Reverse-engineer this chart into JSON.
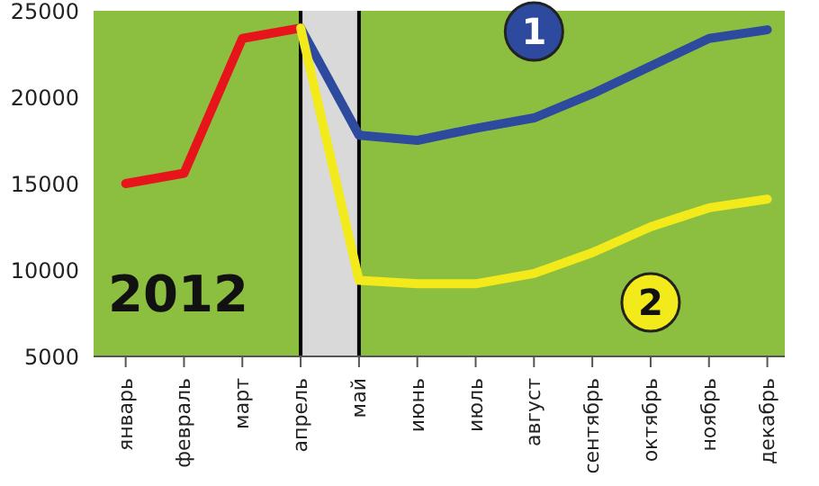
{
  "chart_data": {
    "type": "line",
    "categories": [
      "январь",
      "февраль",
      "март",
      "апрель",
      "май",
      "июнь",
      "июль",
      "август",
      "сентябрь",
      "октябрь",
      "ноябрь",
      "декабрь"
    ],
    "series": [
      {
        "color": "#e8141b",
        "values": [
          15000,
          15600,
          23400,
          24000,
          null,
          null,
          null,
          null,
          null,
          null,
          null,
          null
        ]
      },
      {
        "name": "1",
        "color": "#2e4a9e",
        "values": [
          null,
          null,
          null,
          24000,
          17800,
          17500,
          18200,
          18800,
          20200,
          21800,
          23400,
          23900
        ]
      },
      {
        "name": "2",
        "color": "#f2ea1a",
        "values": [
          null,
          null,
          null,
          24000,
          9400,
          9200,
          9200,
          9800,
          11000,
          12500,
          13600,
          14100
        ]
      }
    ],
    "ylim": [
      5000,
      25000
    ],
    "yticks": [
      5000,
      10000,
      15000,
      20000,
      25000
    ],
    "marker": "none",
    "line_style": "solid",
    "bands": [
      {
        "axis": "x",
        "from": "апрель",
        "to": "май",
        "color": "#d9d9d9"
      }
    ],
    "ref_lines": [
      {
        "axis": "x",
        "value": "апрель",
        "color": "#000000"
      },
      {
        "axis": "x",
        "value": "май",
        "color": "#000000"
      }
    ],
    "annotations": [
      "2012"
    ]
  }
}
